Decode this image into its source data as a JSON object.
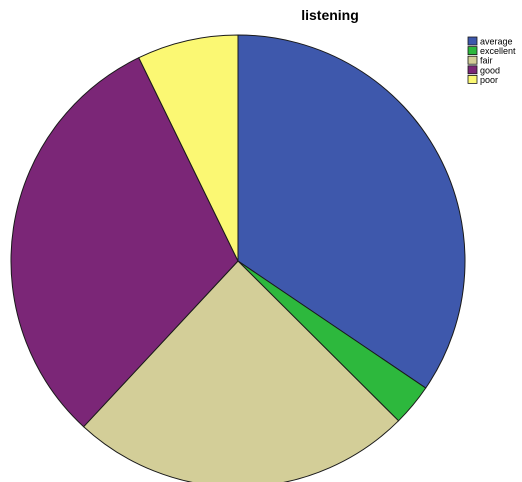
{
  "chart_data": {
    "type": "pie",
    "title": "listening",
    "categories": [
      "average",
      "excellent",
      "fair",
      "good",
      "poor"
    ],
    "values": [
      34.5,
      3.0,
      24.4,
      30.9,
      7.2
    ],
    "units": "percent",
    "start_angle_deg": 0,
    "direction": "clockwise",
    "legend_position": "top-right",
    "colors": {
      "average": "#3e58ac",
      "excellent": "#2db83d",
      "fair": "#d3ce98",
      "good": "#7b2677",
      "poor": "#fbf873",
      "stroke": "#1a1a1a"
    }
  }
}
